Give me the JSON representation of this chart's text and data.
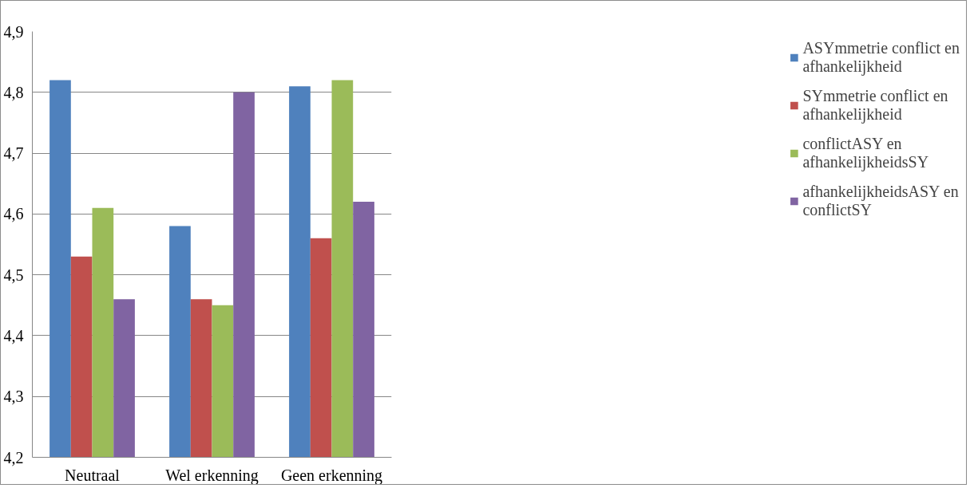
{
  "chart_data": {
    "type": "bar",
    "categories": [
      "Neutraal",
      "Wel erkenning",
      "Geen erkenning"
    ],
    "series": [
      {
        "name": "ASYmmetrie conflict en afhankelijkheid",
        "color": "#4f81bd",
        "values": [
          4.82,
          4.58,
          4.81
        ]
      },
      {
        "name": "SYmmetrie conflict en afhankelijkheid",
        "color": "#c0504d",
        "values": [
          4.53,
          4.46,
          4.56
        ]
      },
      {
        "name": "conflictASY en afhankelijkheidsSY",
        "color": "#9bbb59",
        "values": [
          4.61,
          4.45,
          4.82
        ]
      },
      {
        "name": "afhankelijkheidsASY en conflictSY",
        "color": "#8064a2",
        "values": [
          4.46,
          4.8,
          4.62
        ]
      }
    ],
    "ylim": [
      4.2,
      4.9
    ],
    "yticks": [
      {
        "value": 4.2,
        "label": "4,2"
      },
      {
        "value": 4.3,
        "label": "4,3"
      },
      {
        "value": 4.4,
        "label": "4,4"
      },
      {
        "value": 4.5,
        "label": "4,5"
      },
      {
        "value": 4.6,
        "label": "4,6"
      },
      {
        "value": 4.7,
        "label": "4,7"
      },
      {
        "value": 4.8,
        "label": "4,8"
      },
      {
        "value": 4.9,
        "label": "4,9"
      }
    ],
    "grid": "y",
    "legend": "right"
  }
}
